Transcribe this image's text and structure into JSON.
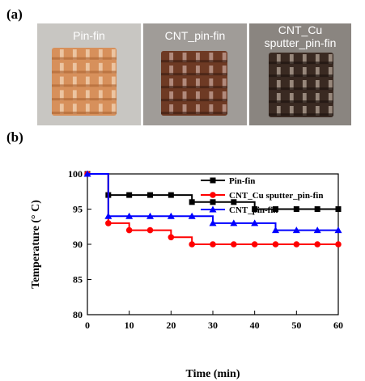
{
  "labels": {
    "a": "(a)",
    "b": "(b)"
  },
  "photos": [
    {
      "caption": [
        "Pin-fin"
      ],
      "bg": "#c8c6c2",
      "fin": "#d7905b",
      "fin_dark": "#b06a38",
      "hole": "#f3d6b8"
    },
    {
      "caption": [
        "CNT_pin-fin"
      ],
      "bg": "#a09c98",
      "fin": "#6e3a24",
      "fin_dark": "#3e2014",
      "hole": "#c8a59a"
    },
    {
      "caption": [
        "CNT_Cu",
        "sputter_pin-fin"
      ],
      "bg": "#8a8580",
      "fin": "#3a2a22",
      "fin_dark": "#1e1410",
      "hole": "#b7a79a"
    }
  ],
  "chart_data": {
    "type": "line",
    "xlabel": "Time (min)",
    "ylabel": "Temperature (° C)",
    "xlim": [
      0,
      60
    ],
    "ylim": [
      80,
      100
    ],
    "xticks": [
      0,
      10,
      20,
      30,
      40,
      50,
      60
    ],
    "yticks": [
      80,
      85,
      90,
      95,
      100
    ],
    "legend_position": "top-right",
    "x": [
      0,
      5,
      10,
      15,
      20,
      25,
      30,
      35,
      40,
      45,
      50,
      55,
      60
    ],
    "series": [
      {
        "name": "Pin-fin",
        "color": "#000000",
        "marker": "square",
        "values": [
          100,
          97,
          97,
          97,
          97,
          96,
          96,
          96,
          95,
          95,
          95,
          95,
          95
        ]
      },
      {
        "name": "CNT_Cu sputter_pin-fin",
        "color": "#ff0000",
        "marker": "circle",
        "values": [
          100,
          93,
          92,
          92,
          91,
          90,
          90,
          90,
          90,
          90,
          90,
          90,
          90
        ]
      },
      {
        "name": "CNT_pin-fin",
        "color": "#0000ff",
        "marker": "triangle",
        "values": [
          100,
          94,
          94,
          94,
          94,
          94,
          93,
          93,
          93,
          92,
          92,
          92,
          92
        ]
      }
    ]
  }
}
